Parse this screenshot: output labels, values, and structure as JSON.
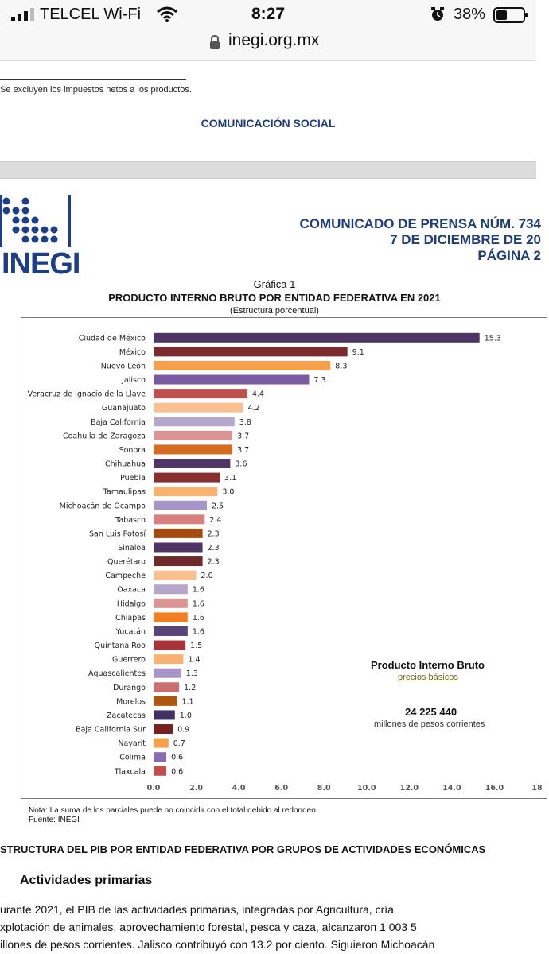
{
  "status_bar": {
    "carrier": "TELCEL Wi-Fi",
    "time": "8:27",
    "battery": "38%"
  },
  "browser": {
    "url": "inegi.org.mx"
  },
  "page1": {
    "footnote": "Se excluyen los impuestos netos a los productos.",
    "department": "COMUNICACIÓN SOCIAL"
  },
  "header": {
    "logo_text": "INEGI",
    "release_line1": "COMUNICADO DE PRENSA NÚM. 734",
    "release_line2": "7 DE DICIEMBRE DE 20",
    "release_line3": "PÁGINA 2"
  },
  "chart_header": {
    "caption": "Gráfica 1",
    "title": "PRODUCTO INTERNO BRUTO POR ENTIDAD FEDERATIVA EN 2021",
    "subtitle": "(Estructura porcentual)"
  },
  "chart_data": {
    "type": "bar",
    "orientation": "horizontal",
    "categories": [
      "Ciudad de México",
      "México",
      "Nuevo León",
      "Jalisco",
      "Veracruz de Ignacio de la Llave",
      "Guanajuato",
      "Baja California",
      "Coahuila de Zaragoza",
      "Sonora",
      "Chihuahua",
      "Puebla",
      "Tamaulipas",
      "Michoacán de Ocampo",
      "Tabasco",
      "San Luis Potosí",
      "Sinaloa",
      "Querétaro",
      "Campeche",
      "Oaxaca",
      "Hidalgo",
      "Chiapas",
      "Yucatán",
      "Quintana Roo",
      "Guerrero",
      "Aguascalientes",
      "Durango",
      "Morelos",
      "Zacatecas",
      "Baja California Sur",
      "Nayarit",
      "Colima",
      "Tlaxcala"
    ],
    "values": [
      15.3,
      9.1,
      8.3,
      7.3,
      4.4,
      4.2,
      3.8,
      3.7,
      3.7,
      3.6,
      3.1,
      3.0,
      2.5,
      2.4,
      2.3,
      2.3,
      2.3,
      2.0,
      1.6,
      1.6,
      1.6,
      1.6,
      1.5,
      1.4,
      1.3,
      1.2,
      1.1,
      1.0,
      0.9,
      0.7,
      0.6,
      0.6
    ],
    "value_labels": [
      "15.3",
      "9.1",
      "8.3",
      "7.3",
      "4.4",
      "4.2",
      "3.8",
      "3.7",
      "3.7",
      "3.6",
      "3.1",
      "3.0",
      "2.5",
      "2.4",
      "2.3",
      "2.3",
      "2.3",
      "2.0",
      "1.6",
      "1.6",
      "1.6",
      "1.6",
      "1.5",
      "1.4",
      "1.3",
      "1.2",
      "1.1",
      "1.0",
      "0.9",
      "0.7",
      "0.6",
      "0.6"
    ],
    "colors": [
      "#4e3566",
      "#7b2b2b",
      "#f5a04a",
      "#7a5aa0",
      "#c0504d",
      "#fac090",
      "#b7a6cc",
      "#d99594",
      "#d66b1f",
      "#4e3566",
      "#8a2f2f",
      "#f8b272",
      "#a895c8",
      "#d97f80",
      "#a64b0f",
      "#4e3566",
      "#6e2a2a",
      "#fac090",
      "#b7a6cc",
      "#d99594",
      "#f47f22",
      "#5a4478",
      "#a8343a",
      "#f8b272",
      "#a895c8",
      "#cc6e70",
      "#b0560f",
      "#3f3161",
      "#7a2020",
      "#f5a04a",
      "#8a6bb0",
      "#c0504d"
    ],
    "x_ticks": [
      "0.0",
      "2.0",
      "4.0",
      "6.0",
      "8.0",
      "10.0",
      "12.0",
      "14.0",
      "16.0",
      "18"
    ],
    "xlim": [
      0,
      18
    ],
    "legend": {
      "title": "Producto Interno Bruto",
      "subtitle": "precios básicos",
      "total": "24 225 440",
      "units": "millones de pesos corrientes"
    }
  },
  "notes": {
    "line1": "Nota: La suma de los parciales puede no coincidir con el total debido al redondeo.",
    "line2": "Fuente: INEGI"
  },
  "section": {
    "heading": "STRUCTURA DEL PIB POR ENTIDAD FEDERATIVA POR GRUPOS DE ACTIVIDADES ECONÓMICAS",
    "subheading": "Actividades primarias",
    "lines": [
      "urante 2021, el PIB de las actividades primarias, integradas por Agricultura, cría",
      "xplotación de animales, aprovechamiento forestal, pesca y caza, alcanzaron 1 003 5",
      "illones de pesos corrientes. Jalisco contribuyó con 13.2 por ciento. Siguieron Michoacán"
    ]
  }
}
